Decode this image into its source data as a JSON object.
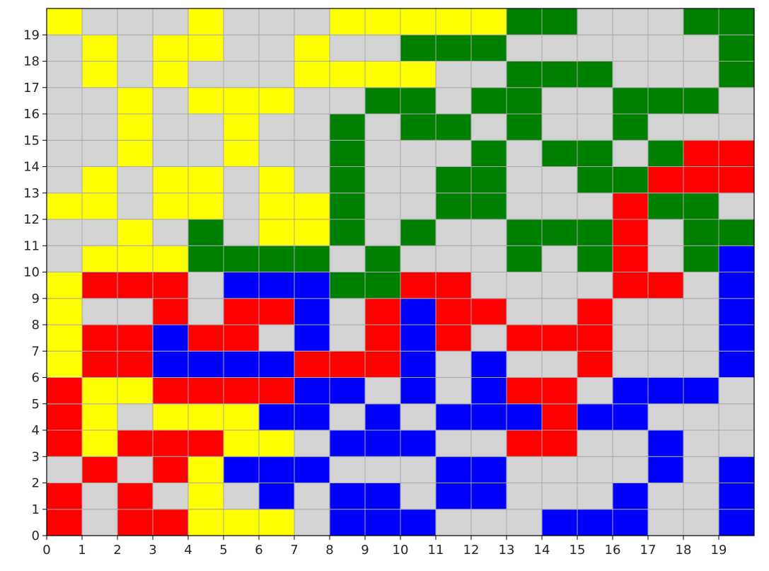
{
  "chart_data": {
    "type": "heatmap",
    "title": "",
    "xlabel": "",
    "ylabel": "",
    "grid": true,
    "xlim": [
      0,
      20
    ],
    "ylim": [
      0,
      20
    ],
    "xticks": [
      0,
      1,
      2,
      3,
      4,
      5,
      6,
      7,
      8,
      9,
      10,
      11,
      12,
      13,
      14,
      15,
      16,
      17,
      18,
      19
    ],
    "yticks": [
      0,
      1,
      2,
      3,
      4,
      5,
      6,
      7,
      8,
      9,
      10,
      11,
      12,
      13,
      14,
      15,
      16,
      17,
      18,
      19
    ],
    "colors": {
      "0": "#d3d3d3",
      "R": "#ff0000",
      "Y": "#ffff00",
      "G": "#008000",
      "B": "#0000ff"
    },
    "cell_codes": [
      "R0RRYYY0BBB000BBB00B",
      "R0R0Y0B0BB0BB000B00B",
      "0R0RYBBB000BB0000B0B",
      "RYRRRYY0BBB00RR00B00",
      "RY0YYYBB0B0BBBRBB000",
      "RYYRRRRBB0B0BRR0BBB0",
      "YRRBBBBRRRB0B00R000B",
      "YRRBRR0B0RBR0RRR000B",
      "Y00R0RRB0RBRR00R000B",
      "YRRR0BBBGGRR0000RR0B",
      "0YYYGGGG0G000G0GR0GB",
      "00Y0G0YYG0G00GGGR0GG",
      "YY0YY0YYG00GG000RGG0",
      "0Y0YY0Y0G00GG00GGRRR",
      "00Y00Y00G000G0GG0GRR",
      "00Y00Y00G0GG0G00G000",
      "00Y0YYY00GG0GG00GGG0",
      "0Y0Y000YYYY00GGG000G",
      "0Y0YY00Y00GGG000000G",
      "Y000Y000YYYYYGG000GG"
    ]
  }
}
